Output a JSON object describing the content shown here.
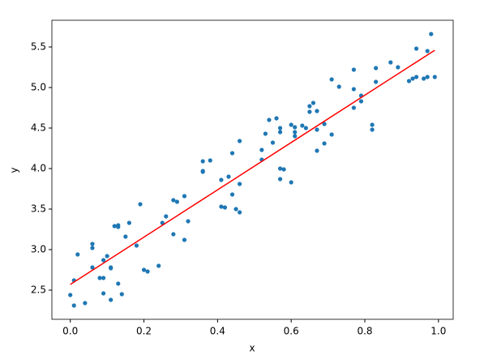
{
  "chart_data": {
    "type": "scatter",
    "xlabel": "x",
    "ylabel": "y",
    "xlim": [
      -0.05,
      1.04
    ],
    "ylim": [
      2.14,
      5.83
    ],
    "xticks": [
      {
        "value": 0,
        "label": "0.0"
      },
      0.2,
      0.4,
      0.6,
      0.8,
      {
        "value": 1,
        "label": "1.0"
      }
    ],
    "yticks": [
      2.5,
      {
        "value": 3,
        "label": "3.0"
      },
      3.5,
      {
        "value": 4,
        "label": "4.0"
      },
      4.5,
      {
        "value": 5,
        "label": "5.0"
      },
      5.5
    ],
    "series": [
      {
        "mode": "markers",
        "color": "#1f77b4",
        "x": [
          0.0,
          0.01,
          0.01,
          0.02,
          0.04,
          0.06,
          0.06,
          0.06,
          0.08,
          0.09,
          0.09,
          0.09,
          0.1,
          0.11,
          0.11,
          0.11,
          0.12,
          0.13,
          0.13,
          0.13,
          0.14,
          0.15,
          0.16,
          0.18,
          0.19,
          0.2,
          0.21,
          0.24,
          0.25,
          0.26,
          0.28,
          0.28,
          0.29,
          0.31,
          0.32,
          0.31,
          0.36,
          0.36,
          0.36,
          0.38,
          0.41,
          0.41,
          0.42,
          0.43,
          0.44,
          0.44,
          0.45,
          0.46,
          0.46,
          0.46,
          0.52,
          0.52,
          0.53,
          0.54,
          0.55,
          0.56,
          0.57,
          0.57,
          0.57,
          0.57,
          0.58,
          0.6,
          0.6,
          0.61,
          0.61,
          0.61,
          0.63,
          0.64,
          0.65,
          0.65,
          0.66,
          0.67,
          0.67,
          0.67,
          0.69,
          0.69,
          0.71,
          0.71,
          0.73,
          0.77,
          0.77,
          0.77,
          0.79,
          0.79,
          0.82,
          0.82,
          0.83,
          0.83,
          0.87,
          0.89,
          0.92,
          0.93,
          0.94,
          0.94,
          0.96,
          0.97,
          0.97,
          0.98,
          0.99
        ],
        "values": [
          2.44,
          2.31,
          2.62,
          2.94,
          2.34,
          3.07,
          3.02,
          2.78,
          2.65,
          2.65,
          2.46,
          2.87,
          2.92,
          2.78,
          2.77,
          2.38,
          3.29,
          3.3,
          3.28,
          2.58,
          2.45,
          3.16,
          3.33,
          3.05,
          3.56,
          2.75,
          2.73,
          2.8,
          3.33,
          3.41,
          3.19,
          3.61,
          3.59,
          3.66,
          3.35,
          3.12,
          3.97,
          3.96,
          4.09,
          4.1,
          3.86,
          3.53,
          3.52,
          3.9,
          3.68,
          4.19,
          3.5,
          4.34,
          3.81,
          3.46,
          4.23,
          4.11,
          4.43,
          4.6,
          4.32,
          4.62,
          4.0,
          3.87,
          4.45,
          4.5,
          3.99,
          4.54,
          3.83,
          4.4,
          4.45,
          4.51,
          4.53,
          4.5,
          4.77,
          4.7,
          4.81,
          4.71,
          4.22,
          4.48,
          4.31,
          4.55,
          4.42,
          5.1,
          5.01,
          4.75,
          5.22,
          4.98,
          4.83,
          4.9,
          4.48,
          4.54,
          5.07,
          5.24,
          5.31,
          5.25,
          5.08,
          5.11,
          5.48,
          5.13,
          5.11,
          5.13,
          5.45,
          5.66,
          5.13
        ]
      },
      {
        "mode": "line",
        "color": "#ff0000",
        "x": [
          0.0,
          0.99
        ],
        "values": [
          2.57,
          5.46
        ]
      }
    ]
  }
}
